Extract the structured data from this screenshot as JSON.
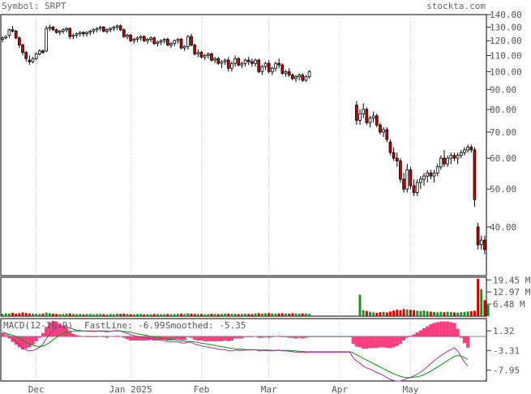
{
  "header": {
    "symbol_label": "Symbol: SRPT",
    "site": "stockta.com"
  },
  "colors": {
    "up": "#ffffff",
    "down": "#cc0000",
    "volume_up": "#228b22",
    "volume_down": "#cc0000",
    "macd_hist": "#ff3377",
    "fastline": "#993399",
    "smoothed": "#009900",
    "grid": "#999999"
  },
  "chart_data": [
    {
      "type": "candlestick",
      "title": "",
      "scale": "log",
      "ylim": [
        30,
        140
      ],
      "ytick_labels": [
        "140.00",
        "130.00",
        "120.00",
        "110.00",
        "100.00",
        "90.00",
        "80.00",
        "70.00",
        "60.00",
        "50.00",
        "40.00"
      ],
      "yticks": [
        140,
        130,
        120,
        110,
        100,
        90,
        80,
        70,
        60,
        50,
        40
      ],
      "x_labels": [
        "Dec",
        "Jan 2025",
        "Feb",
        "Mar",
        "Apr",
        "May"
      ],
      "x_label_index": [
        10,
        38,
        59,
        79,
        100,
        121
      ],
      "n_days": 128,
      "candles": [
        [
          121,
          123,
          119,
          122
        ],
        [
          122,
          124,
          121,
          123
        ],
        [
          124,
          129,
          122,
          128
        ],
        [
          128,
          131,
          126,
          127
        ],
        [
          127,
          128,
          121,
          122
        ],
        [
          122,
          123,
          115,
          117
        ],
        [
          117,
          118,
          110,
          112
        ],
        [
          112,
          113,
          106,
          108
        ],
        [
          107,
          110,
          104,
          106
        ],
        [
          106,
          109,
          105,
          108
        ],
        [
          108,
          112,
          107,
          111
        ],
        [
          111,
          114,
          110,
          113
        ],
        [
          113,
          114,
          111,
          112
        ],
        [
          113,
          131,
          112,
          129
        ],
        [
          129,
          132,
          127,
          130
        ],
        [
          130,
          131,
          127,
          128
        ],
        [
          128,
          129,
          125,
          126
        ],
        [
          126,
          128,
          124,
          127
        ],
        [
          127,
          129,
          125,
          128
        ],
        [
          128,
          130,
          126,
          129
        ],
        [
          129,
          130,
          121,
          123
        ],
        [
          123,
          125,
          121,
          124
        ],
        [
          124,
          126,
          122,
          125
        ],
        [
          125,
          127,
          123,
          126
        ],
        [
          126,
          127,
          123,
          125
        ],
        [
          125,
          127,
          123,
          126
        ],
        [
          126,
          128,
          124,
          127
        ],
        [
          127,
          129,
          125,
          128
        ],
        [
          128,
          130,
          126,
          129
        ],
        [
          129,
          131,
          127,
          130
        ],
        [
          130,
          131,
          126,
          127
        ],
        [
          127,
          129,
          125,
          128
        ],
        [
          128,
          130,
          126,
          129
        ],
        [
          129,
          131,
          127,
          130
        ],
        [
          130,
          132,
          128,
          131
        ],
        [
          131,
          132,
          127,
          128
        ],
        [
          128,
          129,
          122,
          123
        ],
        [
          123,
          125,
          121,
          124
        ],
        [
          124,
          125,
          119,
          120
        ],
        [
          120,
          122,
          118,
          121
        ],
        [
          121,
          123,
          119,
          122
        ],
        [
          122,
          124,
          120,
          123
        ],
        [
          123,
          124,
          119,
          120
        ],
        [
          120,
          122,
          118,
          121
        ],
        [
          121,
          123,
          119,
          122
        ],
        [
          122,
          123,
          117,
          118
        ],
        [
          118,
          120,
          116,
          119
        ],
        [
          119,
          121,
          117,
          120
        ],
        [
          120,
          122,
          118,
          121
        ],
        [
          121,
          122,
          116,
          117
        ],
        [
          117,
          119,
          115,
          118
        ],
        [
          118,
          121,
          116,
          120
        ],
        [
          120,
          122,
          118,
          121
        ],
        [
          121,
          122,
          114,
          115
        ],
        [
          115,
          117,
          113,
          116
        ],
        [
          116,
          124,
          114,
          123
        ],
        [
          123,
          125,
          116,
          117
        ],
        [
          117,
          118,
          110,
          111
        ],
        [
          111,
          114,
          109,
          112
        ],
        [
          112,
          113,
          108,
          109
        ],
        [
          109,
          111,
          107,
          110
        ],
        [
          110,
          112,
          108,
          111
        ],
        [
          111,
          112,
          106,
          107
        ],
        [
          107,
          109,
          105,
          108
        ],
        [
          108,
          109,
          104,
          105
        ],
        [
          105,
          107,
          102,
          106
        ],
        [
          106,
          108,
          104,
          107
        ],
        [
          107,
          109,
          100,
          102
        ],
        [
          102,
          106,
          100,
          105
        ],
        [
          105,
          110,
          103,
          108
        ],
        [
          108,
          109,
          103,
          104
        ],
        [
          104,
          106,
          102,
          105
        ],
        [
          105,
          108,
          103,
          107
        ],
        [
          107,
          109,
          104,
          106
        ],
        [
          106,
          108,
          103,
          105
        ],
        [
          105,
          108,
          103,
          107
        ],
        [
          107,
          108,
          99,
          100
        ],
        [
          100,
          104,
          98,
          103
        ],
        [
          103,
          106,
          101,
          105
        ],
        [
          105,
          107,
          99,
          100
        ],
        [
          100,
          103,
          98,
          102
        ],
        [
          102,
          106,
          100,
          105
        ],
        [
          105,
          108,
          102,
          104
        ],
        [
          104,
          105,
          98,
          99
        ],
        [
          99,
          101,
          97,
          100
        ],
        [
          100,
          102,
          97,
          98
        ],
        [
          98,
          99,
          95,
          96
        ],
        [
          96,
          98,
          94,
          97
        ],
        [
          97,
          99,
          95,
          98
        ],
        [
          98,
          99,
          94,
          95
        ],
        [
          95,
          98,
          94,
          97
        ],
        [
          97,
          101,
          96,
          100
        ],
        [
          null,
          null,
          null,
          null
        ],
        [
          null,
          null,
          null,
          null
        ],
        [
          null,
          null,
          null,
          null
        ],
        [
          null,
          null,
          null,
          null
        ],
        [
          null,
          null,
          null,
          null
        ],
        [
          null,
          null,
          null,
          null
        ],
        [
          null,
          null,
          null,
          null
        ],
        [
          null,
          null,
          null,
          null
        ],
        [
          null,
          null,
          null,
          null
        ],
        [
          null,
          null,
          null,
          null
        ],
        [
          null,
          null,
          null,
          null
        ],
        [
          null,
          null,
          null,
          null
        ],
        [
          null,
          null,
          null,
          null
        ],
        [
          82,
          84,
          73,
          75
        ],
        [
          75,
          80,
          73,
          78
        ],
        [
          78,
          83,
          76,
          80
        ],
        [
          80,
          81,
          73,
          74
        ],
        [
          74,
          77,
          72,
          76
        ],
        [
          76,
          79,
          74,
          77
        ],
        [
          77,
          78,
          72,
          73
        ],
        [
          73,
          74,
          69,
          70
        ],
        [
          70,
          72,
          68,
          71
        ],
        [
          71,
          72,
          66,
          67
        ],
        [
          66,
          67,
          61,
          62
        ],
        [
          62,
          64,
          59,
          60
        ],
        [
          60,
          62,
          57,
          59
        ],
        [
          59,
          60,
          52,
          53
        ],
        [
          53,
          55,
          49,
          50
        ]
      ],
      "candles_tail": [
        [
          50,
          58,
          49,
          56
        ],
        [
          56,
          57,
          50,
          51
        ],
        [
          51,
          53,
          48,
          49
        ],
        [
          49,
          53,
          48,
          52
        ],
        [
          52,
          54,
          50,
          53
        ],
        [
          53,
          55,
          51,
          54
        ],
        [
          54,
          56,
          52,
          55
        ],
        [
          55,
          56,
          53,
          54
        ],
        [
          54,
          56,
          52,
          55
        ],
        [
          55,
          58,
          54,
          57
        ],
        [
          57,
          61,
          56,
          60
        ],
        [
          60,
          63,
          57,
          58
        ],
        [
          58,
          61,
          57,
          60
        ],
        [
          60,
          62,
          58,
          61
        ],
        [
          61,
          62,
          59,
          60
        ],
        [
          60,
          62,
          58,
          61
        ],
        [
          61,
          63,
          60,
          62
        ],
        [
          62,
          64,
          61,
          63
        ],
        [
          63,
          65,
          62,
          64
        ],
        [
          64,
          65,
          62,
          63
        ],
        [
          63,
          64,
          45,
          47
        ],
        [
          40,
          41,
          35,
          36
        ],
        [
          36,
          38,
          35,
          37
        ],
        [
          37,
          38,
          34,
          35
        ]
      ],
      "volume": {
        "ytick_labels": [
          "19.45 M",
          "12.97 M",
          "6.48 M"
        ],
        "yticks": [
          19.45,
          12.97,
          6.48
        ],
        "ymax": 20,
        "values": [
          1.2,
          1.5,
          1.4,
          1.8,
          1.3,
          1.6,
          2.0,
          1.7,
          1.5,
          1.4,
          1.3,
          1.2,
          1.4,
          1.9,
          1.6,
          1.3,
          1.2,
          1.1,
          1.2,
          1.3,
          1.5,
          1.2,
          1.1,
          1.2,
          1.0,
          1.1,
          1.2,
          1.0,
          1.1,
          1.2,
          1.1,
          1.0,
          1.2,
          1.1,
          1.3,
          1.2,
          1.4,
          1.2,
          1.1,
          1.0,
          1.1,
          1.2,
          1.0,
          1.1,
          1.0,
          1.2,
          1.1,
          1.0,
          1.1,
          1.2,
          1.0,
          1.1,
          1.2,
          1.3,
          1.1,
          1.5,
          1.3,
          1.2,
          1.1,
          1.2,
          1.0,
          1.1,
          1.3,
          1.2,
          1.1,
          1.2,
          1.3,
          1.4,
          1.2,
          1.3,
          1.1,
          1.2,
          1.3,
          1.2,
          1.1,
          1.4,
          1.6,
          1.3,
          1.5,
          1.7,
          1.4,
          1.3,
          1.5,
          1.6,
          1.4,
          1.3,
          1.6,
          1.4,
          1.3,
          1.5,
          1.4,
          1.2,
          0,
          0,
          0,
          0,
          0,
          0,
          0,
          0,
          0,
          0,
          0,
          0,
          0,
          0,
          11.5,
          3.2,
          2.8,
          2.4,
          2.0,
          1.8,
          2.1,
          2.3,
          2.0,
          2.5,
          3.0,
          3.5,
          3.2,
          3.8,
          3.6,
          3.4,
          3.2,
          2.9,
          2.8,
          3.0,
          2.6,
          2.4,
          2.2,
          2.0,
          2.3,
          2.1,
          2.4,
          2.2,
          2.0,
          1.9,
          2.1,
          2.3,
          2.5,
          2.7,
          2.9,
          20.0,
          14.5,
          8.6,
          6.0
        ]
      }
    },
    {
      "type": "line",
      "title": "MACD(12-26-9)",
      "series": [
        {
          "name": "FastLine: -6.99"
        },
        {
          "name": "Smoothed: -5.35"
        }
      ],
      "ytick_labels": [
        "1.32",
        "-3.31",
        "-7.95"
      ],
      "yticks": [
        1.32,
        -3.31,
        -7.95
      ],
      "ylim": [
        -10.5,
        4.2
      ],
      "fastline": [
        1.0,
        0.8,
        0.2,
        -0.5,
        -1.2,
        -2.0,
        -2.8,
        -3.2,
        -3.4,
        -3.3,
        -3.0,
        -2.6,
        -1.8,
        -0.5,
        0.6,
        1.5,
        2.0,
        2.2,
        2.3,
        2.3,
        2.0,
        1.7,
        1.5,
        1.4,
        1.3,
        1.2,
        1.2,
        1.2,
        1.2,
        1.3,
        1.2,
        1.1,
        1.2,
        1.3,
        1.4,
        1.3,
        1.0,
        0.7,
        0.4,
        0.2,
        0.0,
        -0.1,
        -0.3,
        -0.4,
        -0.5,
        -0.7,
        -0.8,
        -0.9,
        -1.0,
        -1.2,
        -1.3,
        -1.3,
        -1.3,
        -1.5,
        -1.6,
        -1.3,
        -1.4,
        -1.8,
        -2.0,
        -2.2,
        -2.4,
        -2.5,
        -2.7,
        -2.8,
        -3.0,
        -3.1,
        -3.1,
        -3.4,
        -3.4,
        -3.2,
        -3.3,
        -3.3,
        -3.2,
        -3.2,
        -3.2,
        -3.1,
        -3.4,
        -3.4,
        -3.3,
        -3.4,
        -3.4,
        -3.3,
        -3.2,
        -3.4,
        -3.4,
        -3.5,
        -3.6,
        -3.7,
        -3.7,
        -3.8,
        -3.8,
        -3.7,
        -3.7,
        -3.7,
        -3.7,
        -3.7,
        -3.7,
        -3.7,
        -3.7,
        -3.7,
        -3.7,
        -3.7,
        -3.7,
        -3.7,
        -5.0,
        -5.8,
        -6.3,
        -7.0,
        -7.4,
        -7.7,
        -8.1,
        -8.5,
        -8.8,
        -9.2,
        -9.7,
        -10.1,
        -10.4,
        -10.5,
        -10.5,
        -10.2,
        -9.9,
        -9.6,
        -9.3,
        -8.9,
        -8.4,
        -7.8,
        -7.1,
        -6.4,
        -5.7,
        -5.1,
        -4.5,
        -4.0,
        -3.5,
        -3.1,
        -2.7,
        -3.4,
        -4.8,
        -6.0,
        -6.99
      ],
      "smoothed": [
        0.5,
        0.6,
        0.5,
        0.3,
        0.0,
        -0.4,
        -0.9,
        -1.4,
        -1.8,
        -2.1,
        -2.3,
        -2.4,
        -2.3,
        -1.9,
        -1.4,
        -0.8,
        -0.2,
        0.3,
        0.7,
        1.0,
        1.2,
        1.3,
        1.3,
        1.3,
        1.3,
        1.3,
        1.3,
        1.3,
        1.3,
        1.3,
        1.3,
        1.3,
        1.2,
        1.3,
        1.3,
        1.3,
        1.2,
        1.1,
        1.0,
        0.8,
        0.6,
        0.5,
        0.3,
        0.2,
        0.0,
        -0.1,
        -0.2,
        -0.4,
        -0.5,
        -0.6,
        -0.7,
        -0.8,
        -0.9,
        -1.0,
        -1.1,
        -1.2,
        -1.2,
        -1.3,
        -1.4,
        -1.6,
        -1.7,
        -1.8,
        -2.0,
        -2.1,
        -2.3,
        -2.4,
        -2.5,
        -2.7,
        -2.8,
        -2.9,
        -3.0,
        -3.0,
        -3.1,
        -3.1,
        -3.1,
        -3.1,
        -3.2,
        -3.2,
        -3.2,
        -3.2,
        -3.3,
        -3.3,
        -3.3,
        -3.3,
        -3.3,
        -3.3,
        -3.4,
        -3.4,
        -3.5,
        -3.5,
        -3.6,
        -3.6,
        -3.6,
        -3.6,
        -3.6,
        -3.6,
        -3.6,
        -3.6,
        -3.6,
        -3.6,
        -3.6,
        -3.6,
        -3.6,
        -3.6,
        -3.9,
        -4.3,
        -4.7,
        -5.2,
        -5.6,
        -6.0,
        -6.4,
        -6.8,
        -7.2,
        -7.6,
        -8.0,
        -8.4,
        -8.8,
        -9.1,
        -9.4,
        -9.6,
        -9.7,
        -9.7,
        -9.6,
        -9.5,
        -9.3,
        -9.0,
        -8.6,
        -8.2,
        -7.7,
        -7.2,
        -6.7,
        -6.2,
        -5.7,
        -5.2,
        -4.7,
        -4.5,
        -4.6,
        -5.0,
        -5.35
      ]
    }
  ]
}
